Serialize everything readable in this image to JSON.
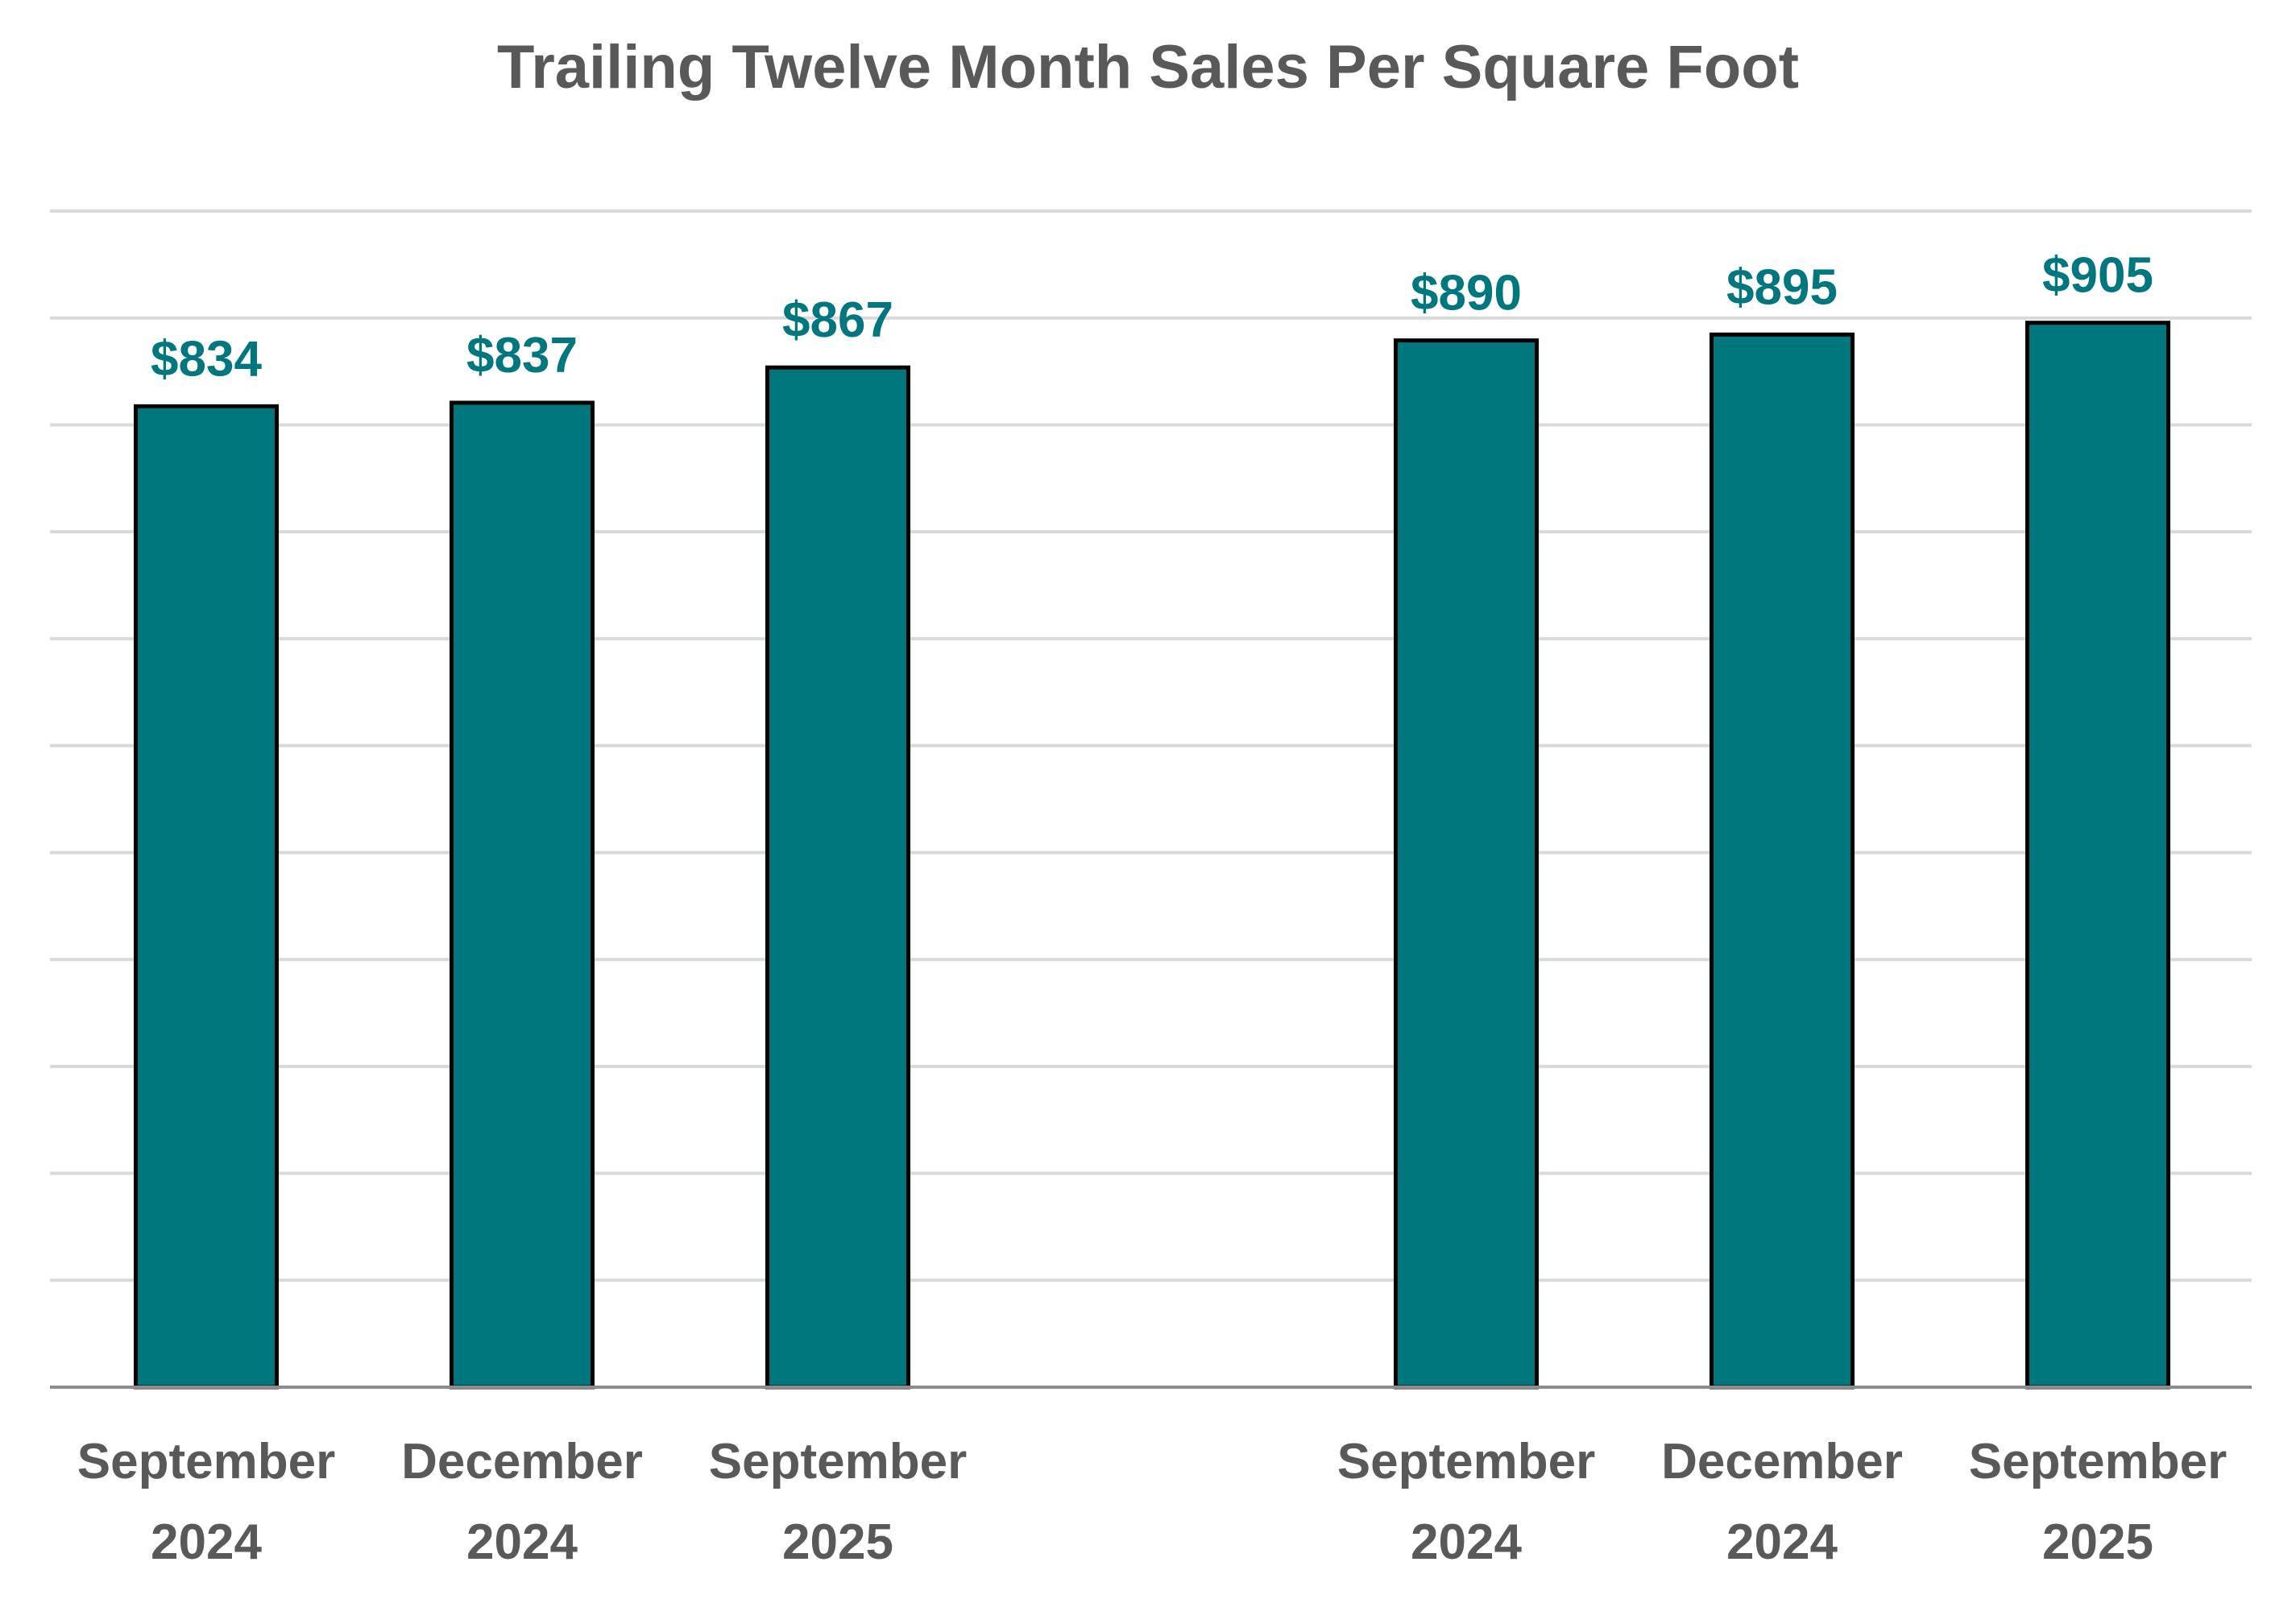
{
  "chart_data": {
    "type": "bar",
    "title": "Trailing Twelve Month Sales Per Square Foot",
    "xlabel": "",
    "ylabel": "",
    "ylim": [
      0,
      1000
    ],
    "grid": true,
    "bar_color": "#00767e",
    "bar_edge_color": "#000000",
    "gridline_color": "#d9d9d9",
    "label_color": "#595959",
    "groups": [
      {
        "categories": [
          {
            "line1": "September",
            "line2": "2024"
          },
          {
            "line1": "December",
            "line2": "2024"
          },
          {
            "line1": "September",
            "line2": "2025"
          }
        ],
        "values": [
          834,
          837,
          867
        ],
        "data_labels": [
          "$834",
          "$837",
          "$867"
        ]
      },
      {
        "categories": [
          {
            "line1": "September",
            "line2": "2024"
          },
          {
            "line1": "December",
            "line2": "2024"
          },
          {
            "line1": "September",
            "line2": "2025"
          }
        ],
        "values": [
          890,
          895,
          905
        ],
        "data_labels": [
          "$890",
          "$895",
          "$905"
        ]
      }
    ]
  }
}
